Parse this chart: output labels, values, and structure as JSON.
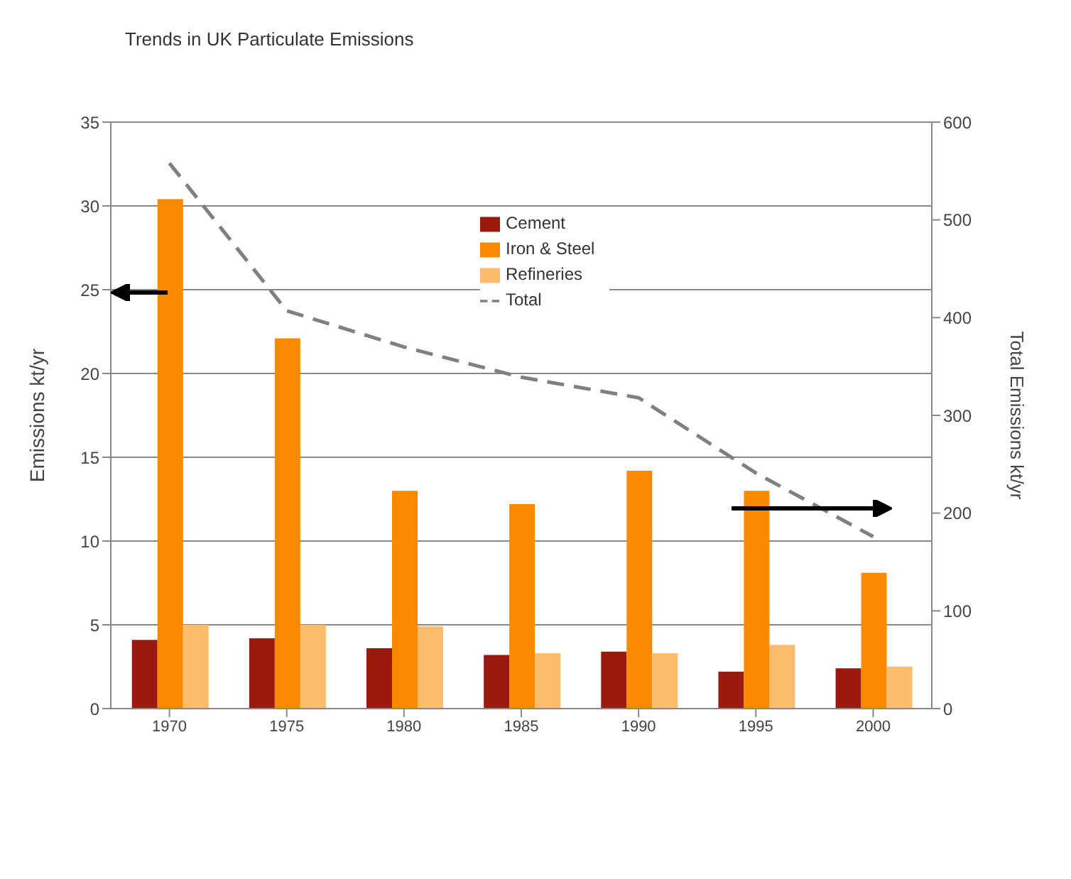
{
  "chart_data": {
    "type": "bar",
    "title": "Trends in UK Particulate Emissions",
    "ylabel": "Emissions kt/yr",
    "y2label": "Total Emissions kt/yr",
    "categories": [
      "1970",
      "1975",
      "1980",
      "1985",
      "1990",
      "1995",
      "2000"
    ],
    "series": [
      {
        "name": "Cement",
        "color": "#9b1a0e",
        "values": [
          4.1,
          4.2,
          3.6,
          3.2,
          3.4,
          2.2,
          2.4
        ]
      },
      {
        "name": "Iron & Steel",
        "color": "#f98a00",
        "values": [
          30.4,
          22.1,
          13.0,
          12.2,
          14.2,
          13.0,
          8.1
        ]
      },
      {
        "name": "Refineries",
        "color": "#fbbd6b",
        "values": [
          5.0,
          5.0,
          4.9,
          3.3,
          3.3,
          3.8,
          2.5
        ]
      },
      {
        "name": "Total",
        "type": "line",
        "axis": "y2",
        "color": "#808080",
        "line_style": "dashed",
        "values": [
          558,
          407,
          370,
          339,
          318,
          241,
          176
        ]
      }
    ],
    "ylim": [
      0,
      35
    ],
    "yticks": [
      0,
      5,
      10,
      15,
      20,
      25,
      30,
      35
    ],
    "y2lim": [
      0,
      600
    ],
    "y2ticks": [
      0,
      100,
      200,
      300,
      400,
      500,
      600
    ],
    "grid": "y",
    "legend": "top",
    "marker": "none"
  }
}
